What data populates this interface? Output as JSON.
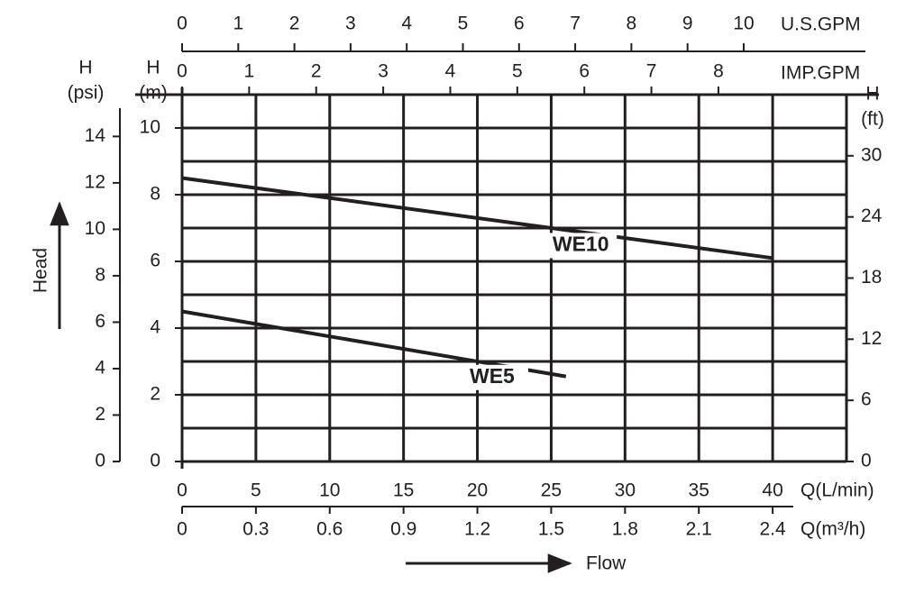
{
  "chart_data": {
    "type": "line",
    "xlim": [
      0,
      45
    ],
    "xticks": [
      0,
      5,
      10,
      15,
      20,
      25,
      30,
      35,
      40
    ],
    "x_label": "Q(L/min)",
    "ylim": [
      0,
      11
    ],
    "yticks": [
      0,
      2,
      4,
      6,
      8,
      10
    ],
    "y_label": [
      "H",
      "(m)"
    ],
    "ygrid": [
      0,
      1,
      2,
      3,
      4,
      5,
      6,
      7,
      8,
      9,
      10,
      11
    ],
    "grid": true,
    "secondary_axes": [
      {
        "label": [
          "U.S.GPM"
        ],
        "position": "top",
        "lim": [
          0,
          11.83
        ],
        "ticks": [
          0,
          1,
          2,
          3,
          4,
          5,
          6,
          7,
          8,
          9,
          10
        ]
      },
      {
        "label": [
          "IMP.GPM"
        ],
        "position": "top-inner",
        "lim": [
          0,
          9.91
        ],
        "ticks": [
          0,
          1,
          2,
          3,
          4,
          5,
          6,
          7,
          8
        ]
      },
      {
        "label": [
          "Q(m³/h)"
        ],
        "position": "bottom",
        "lim": [
          0,
          2.7
        ],
        "ticks": [
          0,
          0.3,
          0.6,
          0.9,
          1.2,
          1.5,
          1.8,
          2.1,
          2.4
        ]
      },
      {
        "label": [
          "H",
          "(psi)"
        ],
        "position": "left",
        "lim": [
          0,
          15.8
        ],
        "ticks": [
          0,
          2,
          4,
          6,
          8,
          10,
          12,
          14
        ]
      },
      {
        "label": [
          "H",
          "(ft)"
        ],
        "position": "right",
        "lim": [
          0,
          36
        ],
        "ticks": [
          0,
          6,
          12,
          18,
          24,
          30
        ]
      }
    ],
    "y_title": "Head",
    "x_title": "Flow",
    "series": [
      {
        "name": "WE10",
        "color": "#231f20",
        "x": [
          0,
          40
        ],
        "values": [
          8.5,
          6.1
        ]
      },
      {
        "name": "WE5",
        "color": "#231f20",
        "x": [
          0,
          26
        ],
        "values": [
          4.5,
          2.55
        ]
      }
    ]
  }
}
